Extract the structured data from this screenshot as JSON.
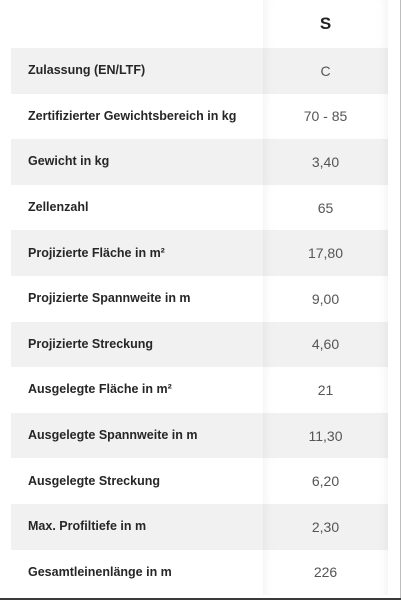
{
  "table": {
    "size_header": "S",
    "rows": [
      {
        "label": "Zulassung (EN/LTF)",
        "value": "C"
      },
      {
        "label": "Zertifizierter Gewichtsbereich in kg",
        "value": "70 - 85"
      },
      {
        "label": "Gewicht in kg",
        "value": "3,40"
      },
      {
        "label": "Zellenzahl",
        "value": "65"
      },
      {
        "label": "Projizierte Fläche in m²",
        "value": "17,80"
      },
      {
        "label": "Projizierte Spannweite in m",
        "value": "9,00"
      },
      {
        "label": "Projizierte Streckung",
        "value": "4,60"
      },
      {
        "label": "Ausgelegte Fläche in m²",
        "value": "21"
      },
      {
        "label": "Ausgelegte Spannweite in m",
        "value": "11,30"
      },
      {
        "label": "Ausgelegte Streckung",
        "value": "6,20"
      },
      {
        "label": "Max. Profiltiefe in m",
        "value": "2,30"
      },
      {
        "label": "Gesamtleinenlänge in m",
        "value": "226"
      }
    ]
  },
  "colors": {
    "row_shade": "#f1f1f1",
    "label_text": "#262626",
    "value_text": "#555555"
  }
}
